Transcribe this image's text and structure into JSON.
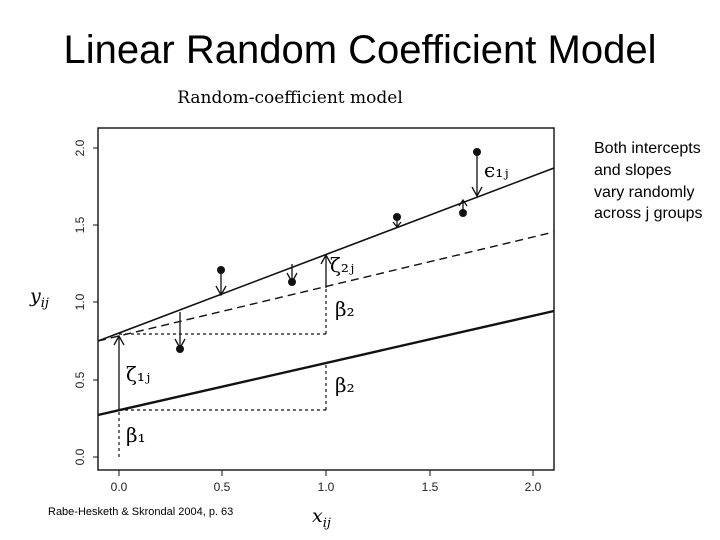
{
  "slide": {
    "title": "Linear Random Coefficient Model",
    "note": "Both intercepts and slopes vary randomly across j groups",
    "citation": "Rabe-Hesketh & Skrondal 2004, p. 63"
  },
  "figure": {
    "title": "Random-coefficient model",
    "xlabel": "x_{ij}",
    "ylabel": "y_{ij}",
    "x_ticks": [
      "0.0",
      "0.5",
      "1.0",
      "1.5",
      "2.0"
    ],
    "y_ticks": [
      "0.0",
      "0.5",
      "1.0",
      "1.5",
      "2.0"
    ],
    "labels": {
      "beta1": "β₁",
      "beta2_upper": "β₂",
      "beta2_lower": "β₂",
      "zeta1j": "ζ₁ⱼ",
      "zeta2j": "ζ₂ⱼ",
      "eps1j": "ϵ₁ⱼ"
    },
    "colors": {
      "line": "#111111",
      "background": "#ffffff"
    }
  }
}
